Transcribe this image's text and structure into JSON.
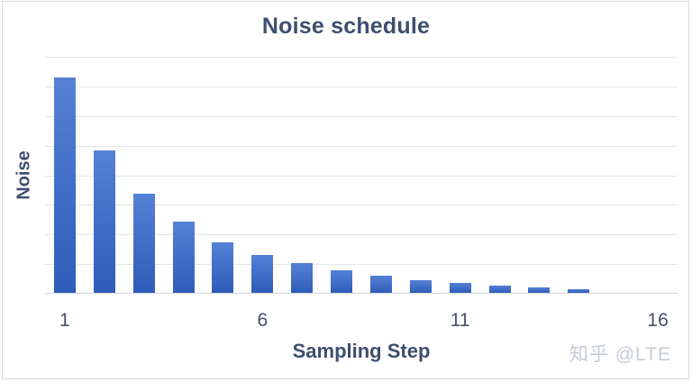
{
  "chart": {
    "title": "Noise schedule",
    "x_axis_title": "Sampling Step",
    "y_axis_title": "Noise"
  },
  "watermark": {
    "text": "知乎 @LTE"
  },
  "colors": {
    "title_text": "#3e4e6e",
    "axis_title_text": "#3e4e6e",
    "tick_text": "#47506a",
    "gridline": "#e4e5e7",
    "axis_line": "#d2d4d8",
    "frame_border": "#d6d9de",
    "bar_gradient_top": "#5581d6",
    "bar_gradient_bottom": "#2e5cb8",
    "watermark_text": "#c7ccd4"
  },
  "chart_data": {
    "type": "bar",
    "title": "Noise schedule",
    "xlabel": "Sampling Step",
    "ylabel": "Noise",
    "x": [
      1,
      2,
      3,
      4,
      5,
      6,
      7,
      8,
      9,
      10,
      11,
      12,
      13,
      14
    ],
    "values": [
      1.0,
      0.66,
      0.46,
      0.33,
      0.235,
      0.175,
      0.137,
      0.105,
      0.08,
      0.06,
      0.046,
      0.035,
      0.026,
      0.019
    ],
    "y_unit": "relative noise level (y axis has no tick labels; values normalized so first bar = 1.0)",
    "ylim": [
      0,
      1.1
    ],
    "x_slots": 16,
    "x_ticks": [
      1,
      6,
      11,
      16
    ],
    "grid": "horizontal",
    "grid_intervals": 8,
    "legend": "none",
    "bar_color": "#3a66c2"
  }
}
